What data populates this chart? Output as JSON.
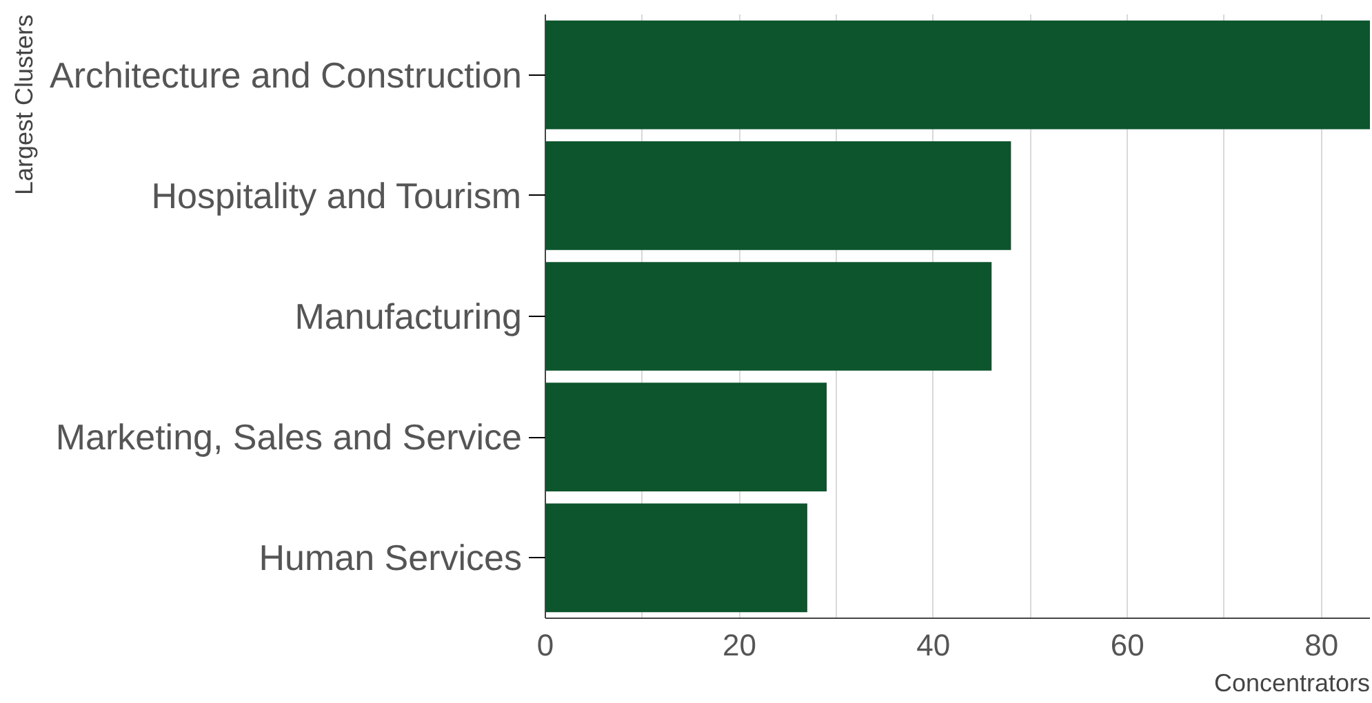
{
  "chart_data": {
    "type": "bar",
    "orientation": "horizontal",
    "ylabel": "Largest Clusters",
    "xlabel": "Concentrators",
    "categories": [
      "Architecture and Construction",
      "Hospitality and Tourism",
      "Manufacturing",
      "Marketing, Sales and Service",
      "Human Services"
    ],
    "values": [
      85,
      48,
      46,
      29,
      27
    ],
    "color": "#0c552d",
    "xlim": [
      0,
      85
    ],
    "xticks": [
      0,
      {
        "value": 10,
        "label": null
      },
      20,
      {
        "value": 30,
        "label": null
      },
      40,
      {
        "value": 50,
        "label": null
      },
      60,
      {
        "value": 70,
        "label": null
      },
      80
    ],
    "grid": "x"
  }
}
